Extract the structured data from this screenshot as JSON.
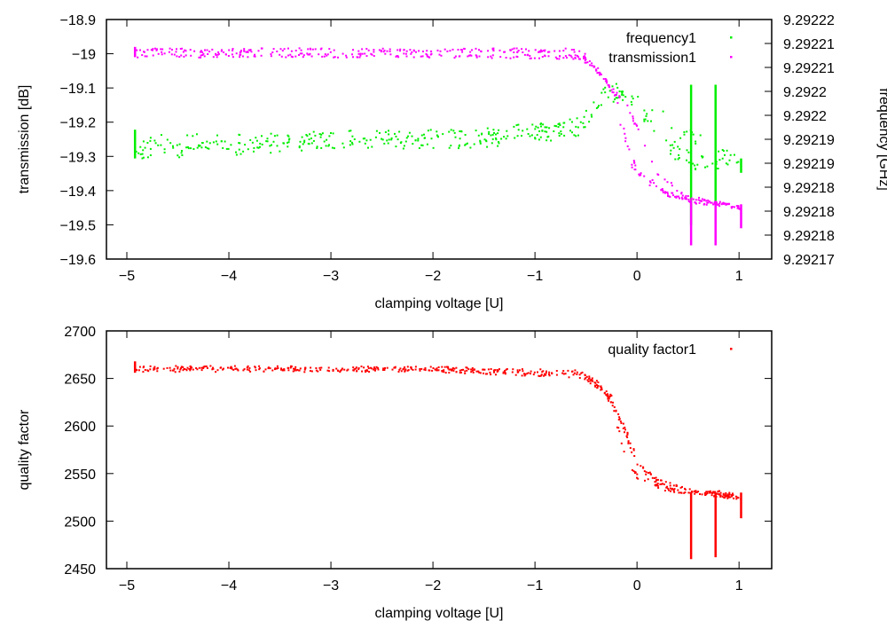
{
  "chart_data": [
    {
      "type": "scatter",
      "xlabel": "clamping voltage [U]",
      "ylabel": "transmission [dB]",
      "y2label": "frequency [GHz]",
      "xlim": [
        -5.2,
        1.32
      ],
      "ylim": [
        -19.6,
        -18.9
      ],
      "y2lim": [
        9.29217,
        9.29222
      ],
      "xticks": [
        "-5",
        "-4",
        "-3",
        "-2",
        "-1",
        "0",
        "1"
      ],
      "xtick_values": [
        -5,
        -4,
        -3,
        -2,
        -1,
        0,
        1
      ],
      "yticks": [
        "-18.9",
        "-19",
        "-19.1",
        "-19.2",
        "-19.3",
        "-19.4",
        "-19.5",
        "-19.6"
      ],
      "ytick_values": [
        -18.9,
        -19.0,
        -19.1,
        -19.2,
        -19.3,
        -19.4,
        -19.5,
        -19.6
      ],
      "y2ticks": [
        "9.29222",
        "9.29221",
        "9.29221",
        "9.2922",
        "9.2922",
        "9.29219",
        "9.29219",
        "9.29218",
        "9.29218",
        "9.29218",
        "9.29217"
      ],
      "y2tick_values": [
        9.29222,
        9.292215,
        9.29221,
        9.292205,
        9.2922,
        9.292195,
        9.29219,
        9.292185,
        9.29218,
        9.292175,
        9.29217
      ],
      "legend_position": "top-right",
      "series": [
        {
          "name": "frequency1",
          "axis": "y2",
          "color": "#00ee00",
          "noise": 1.8e-06,
          "branches": [
            {
              "points": [
                [
                  -4.92,
                  9.292194
                ],
                [
                  -3,
                  9.292195
                ],
                [
                  -1.5,
                  9.2921955
                ],
                [
                  -0.6,
                  9.2921975
                ],
                [
                  -0.45,
                  9.2922005
                ],
                [
                  -0.3,
                  9.2922055
                ],
                [
                  -0.1,
                  9.292204
                ],
                [
                  0.2,
                  9.2922005
                ],
                [
                  0.5,
                  9.2921955
                ],
                [
                  0.8,
                  9.2921925
                ],
                [
                  1.02,
                  9.29219
                ]
              ],
              "count": 220
            },
            {
              "points": [
                [
                  -4.92,
                  9.2921925
                ],
                [
                  -3,
                  9.2921945
                ],
                [
                  -1.5,
                  9.292195
                ],
                [
                  -0.6,
                  9.292197
                ],
                [
                  -0.3,
                  9.2922045
                ],
                [
                  -0.1,
                  9.2922035
                ],
                [
                  0.1,
                  9.2922
                ],
                [
                  0.3,
                  9.2921935
                ],
                [
                  0.55,
                  9.2921905
                ],
                [
                  1.02,
                  9.29219
                ]
              ],
              "count": 220
            }
          ],
          "spikes": [
            [
              0.53,
              9.2921771,
              9.2922064
            ],
            [
              0.77,
              9.2921771,
              9.2922064
            ],
            [
              -4.92,
              9.292191,
              9.292197
            ],
            [
              1.02,
              9.292188,
              9.292191
            ]
          ]
        },
        {
          "name": "transmission1",
          "axis": "y",
          "color": "#ff00ff",
          "noise": 0.006,
          "branches": [
            {
              "points": [
                [
                  -4.92,
                  -18.99
                ],
                [
                  -2,
                  -18.99
                ],
                [
                  -0.55,
                  -18.99
                ],
                [
                  -0.4,
                  -19.04
                ],
                [
                  -0.25,
                  -19.1
                ],
                [
                  -0.15,
                  -19.22
                ],
                [
                  -0.05,
                  -19.33
                ],
                [
                  0.2,
                  -19.4
                ],
                [
                  0.5,
                  -19.43
                ],
                [
                  1.02,
                  -19.45
                ]
              ],
              "count": 230
            },
            {
              "points": [
                [
                  -4.92,
                  -19.005
                ],
                [
                  -2,
                  -19.005
                ],
                [
                  -0.55,
                  -19.01
                ],
                [
                  -0.35,
                  -19.06
                ],
                [
                  -0.25,
                  -19.1
                ],
                [
                  -0.1,
                  -19.15
                ],
                [
                  0.05,
                  -19.25
                ],
                [
                  0.2,
                  -19.35
                ],
                [
                  0.5,
                  -19.42
                ],
                [
                  1.02,
                  -19.45
                ]
              ],
              "count": 230
            },
            {
              "points": [
                [
                  -0.55,
                  -19.0
                ],
                [
                  -0.3,
                  -19.08
                ],
                [
                  -0.2,
                  -19.13
                ],
                [
                  -0.1,
                  -19.26
                ],
                [
                  0.0,
                  -19.34
                ],
                [
                  0.3,
                  -19.41
                ],
                [
                  1.02,
                  -19.45
                ]
              ],
              "count": 80
            }
          ],
          "spikes": [
            [
              0.53,
              -19.56,
              -19.43
            ],
            [
              0.77,
              -19.56,
              -19.43
            ],
            [
              -4.92,
              -19.01,
              -18.98
            ],
            [
              1.02,
              -19.51,
              -19.44
            ]
          ]
        }
      ]
    },
    {
      "type": "scatter",
      "xlabel": "clamping voltage [U]",
      "ylabel": "quality factor",
      "xlim": [
        -5.2,
        1.32
      ],
      "ylim": [
        2450,
        2700
      ],
      "xticks": [
        "-5",
        "-4",
        "-3",
        "-2",
        "-1",
        "0",
        "1"
      ],
      "xtick_values": [
        -5,
        -4,
        -3,
        -2,
        -1,
        0,
        1
      ],
      "yticks": [
        "2700",
        "2650",
        "2600",
        "2550",
        "2500",
        "2450"
      ],
      "ytick_values": [
        2700,
        2650,
        2600,
        2550,
        2500,
        2450
      ],
      "legend_position": "top-right",
      "series": [
        {
          "name": "quality factor1",
          "axis": "y",
          "color": "#ff0000",
          "noise": 2.5,
          "branches": [
            {
              "points": [
                [
                  -4.92,
                  2661
                ],
                [
                  -2,
                  2660
                ],
                [
                  -0.55,
                  2656
                ],
                [
                  -0.35,
                  2642
                ],
                [
                  -0.25,
                  2625
                ],
                [
                  -0.18,
                  2595
                ],
                [
                  -0.1,
                  2565
                ],
                [
                  0.0,
                  2547
                ],
                [
                  0.3,
                  2533
                ],
                [
                  1.02,
                  2525
                ]
              ],
              "count": 260
            },
            {
              "points": [
                [
                  -4.92,
                  2659
                ],
                [
                  -2,
                  2659
                ],
                [
                  -0.55,
                  2653
                ],
                [
                  -0.3,
                  2632
                ],
                [
                  -0.15,
                  2605
                ],
                [
                  -0.05,
                  2580
                ],
                [
                  0.05,
                  2558
                ],
                [
                  0.2,
                  2542
                ],
                [
                  0.5,
                  2532
                ],
                [
                  1.02,
                  2525
                ]
              ],
              "count": 260
            },
            {
              "points": [
                [
                  -0.55,
                  2655
                ],
                [
                  -0.25,
                  2630
                ],
                [
                  -0.12,
                  2592
                ],
                [
                  0.0,
                  2560
                ],
                [
                  0.2,
                  2538
                ],
                [
                  1.02,
                  2526
                ]
              ],
              "count": 100
            }
          ],
          "spikes": [
            [
              0.53,
              2460,
              2530
            ],
            [
              0.77,
              2462,
              2530
            ],
            [
              1.02,
              2503,
              2530
            ],
            [
              -4.92,
              2656,
              2668
            ]
          ]
        }
      ]
    }
  ]
}
